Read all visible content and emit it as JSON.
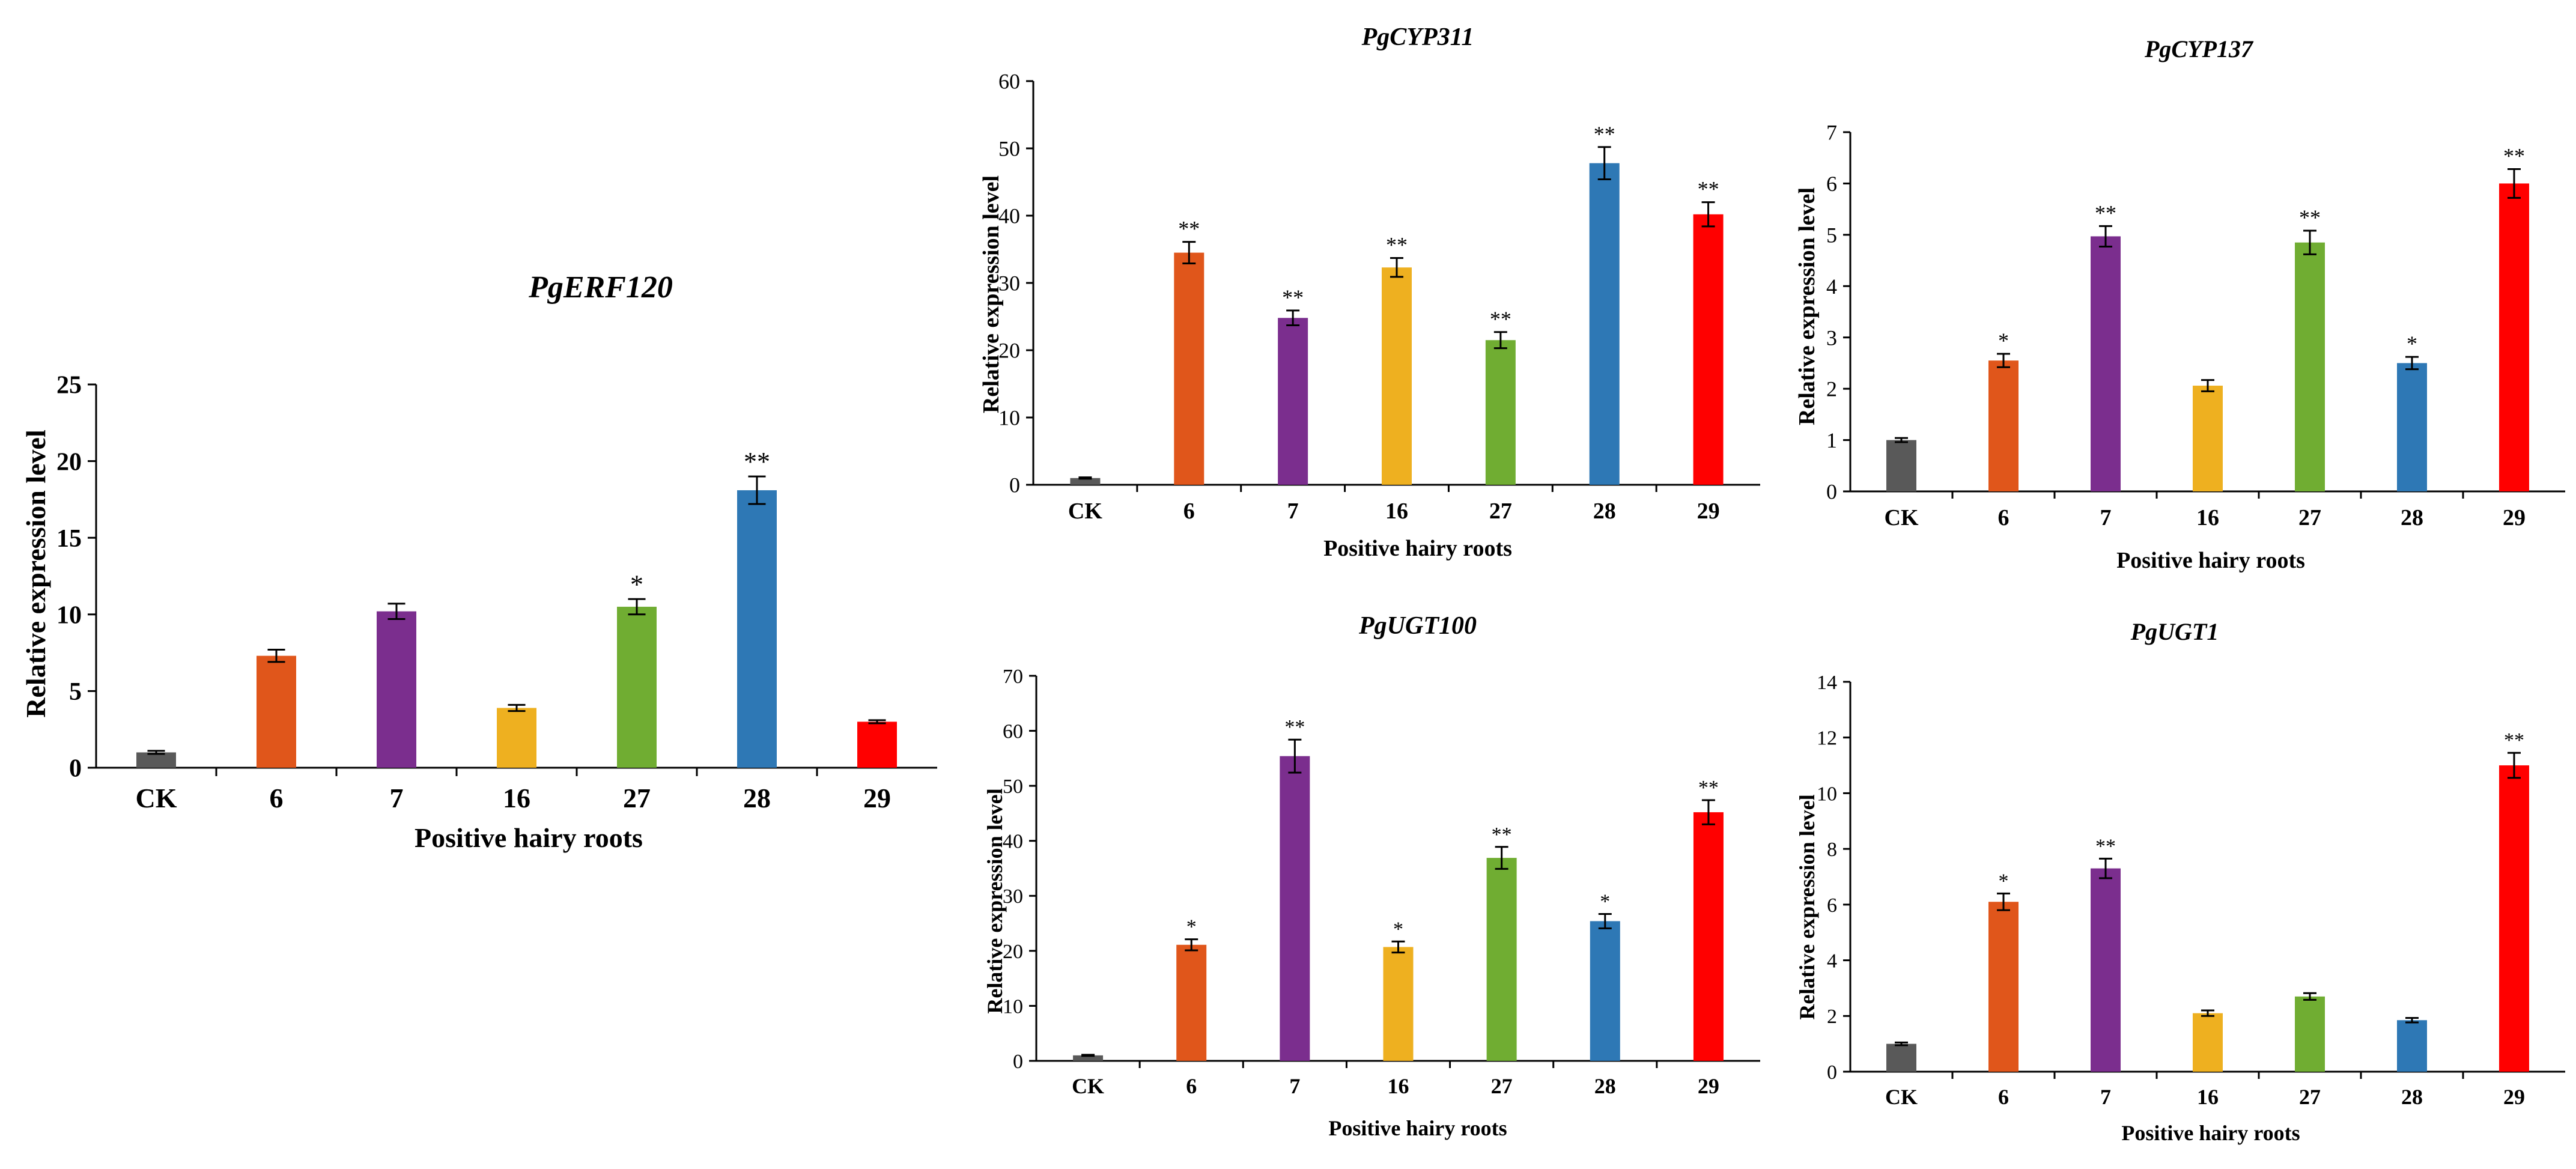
{
  "chart_data": [
    {
      "id": "pgerf120",
      "type": "bar",
      "title": "PgERF120",
      "xlabel": "Positive hairy roots",
      "ylabel": "Relative expression level",
      "categories": [
        "CK",
        "6",
        "7",
        "16",
        "27",
        "28",
        "29"
      ],
      "values": [
        1.0,
        7.3,
        10.2,
        3.9,
        10.5,
        18.1,
        3.0
      ],
      "errors": [
        0.1,
        0.4,
        0.5,
        0.2,
        0.5,
        0.9,
        0.1
      ],
      "significance": [
        "",
        "",
        "",
        "",
        "*",
        "**",
        ""
      ],
      "ylim": [
        0,
        25
      ],
      "yticks": [
        0,
        5,
        10,
        15,
        20,
        25
      ]
    },
    {
      "id": "pgcyp311",
      "type": "bar",
      "title": "PgCYP311",
      "xlabel": "Positive hairy roots",
      "ylabel": "Relative expression level",
      "categories": [
        "CK",
        "6",
        "7",
        "16",
        "27",
        "28",
        "29"
      ],
      "values": [
        1.0,
        34.5,
        24.8,
        32.3,
        21.5,
        47.8,
        40.2
      ],
      "errors": [
        0.1,
        1.6,
        1.1,
        1.4,
        1.2,
        2.4,
        1.8
      ],
      "significance": [
        "",
        "**",
        "**",
        "**",
        "**",
        "**",
        "**"
      ],
      "ylim": [
        0,
        60
      ],
      "yticks": [
        0,
        10,
        20,
        30,
        40,
        50,
        60
      ]
    },
    {
      "id": "pgcyp137",
      "type": "bar",
      "title": "PgCYP137",
      "xlabel": "Positive hairy roots",
      "ylabel": "Relative expression level",
      "categories": [
        "CK",
        "6",
        "7",
        "16",
        "27",
        "28",
        "29"
      ],
      "values": [
        1.0,
        2.55,
        4.97,
        2.06,
        4.85,
        2.5,
        6.0
      ],
      "errors": [
        0.04,
        0.13,
        0.2,
        0.11,
        0.23,
        0.12,
        0.28
      ],
      "significance": [
        "",
        "*",
        "**",
        "",
        "**",
        "*",
        "**"
      ],
      "ylim": [
        0,
        7
      ],
      "yticks": [
        0,
        1,
        2,
        3,
        4,
        5,
        6,
        7
      ]
    },
    {
      "id": "pgugt100",
      "type": "bar",
      "title": "PgUGT100",
      "xlabel": "Positive hairy roots",
      "ylabel": "Relative expression level",
      "categories": [
        "CK",
        "6",
        "7",
        "16",
        "27",
        "28",
        "29"
      ],
      "values": [
        1.0,
        21.1,
        55.4,
        20.7,
        36.9,
        25.4,
        45.2
      ],
      "errors": [
        0.1,
        1.0,
        3.0,
        1.0,
        2.0,
        1.3,
        2.2
      ],
      "significance": [
        "",
        "*",
        "**",
        "*",
        "**",
        "*",
        "**"
      ],
      "ylim": [
        0,
        70
      ],
      "yticks": [
        0,
        10,
        20,
        30,
        40,
        50,
        60,
        70
      ]
    },
    {
      "id": "pgugt1",
      "type": "bar",
      "title": "PgUGT1",
      "xlabel": "Positive hairy roots",
      "ylabel": "Relative expression level",
      "categories": [
        "CK",
        "6",
        "7",
        "16",
        "27",
        "28",
        "29"
      ],
      "values": [
        1.0,
        6.1,
        7.3,
        2.1,
        2.7,
        1.85,
        11.0
      ],
      "errors": [
        0.05,
        0.3,
        0.35,
        0.1,
        0.12,
        0.08,
        0.45
      ],
      "significance": [
        "",
        "*",
        "**",
        "",
        "",
        "",
        "**"
      ],
      "ylim": [
        0,
        14
      ],
      "yticks": [
        0,
        2,
        4,
        6,
        8,
        10,
        12,
        14
      ]
    }
  ],
  "colors": {
    "bars": [
      "#595959",
      "#e0561b",
      "#7b2e8e",
      "#eeb020",
      "#70ad32",
      "#2e78b5",
      "#ff0000"
    ],
    "axis": "#000000"
  }
}
